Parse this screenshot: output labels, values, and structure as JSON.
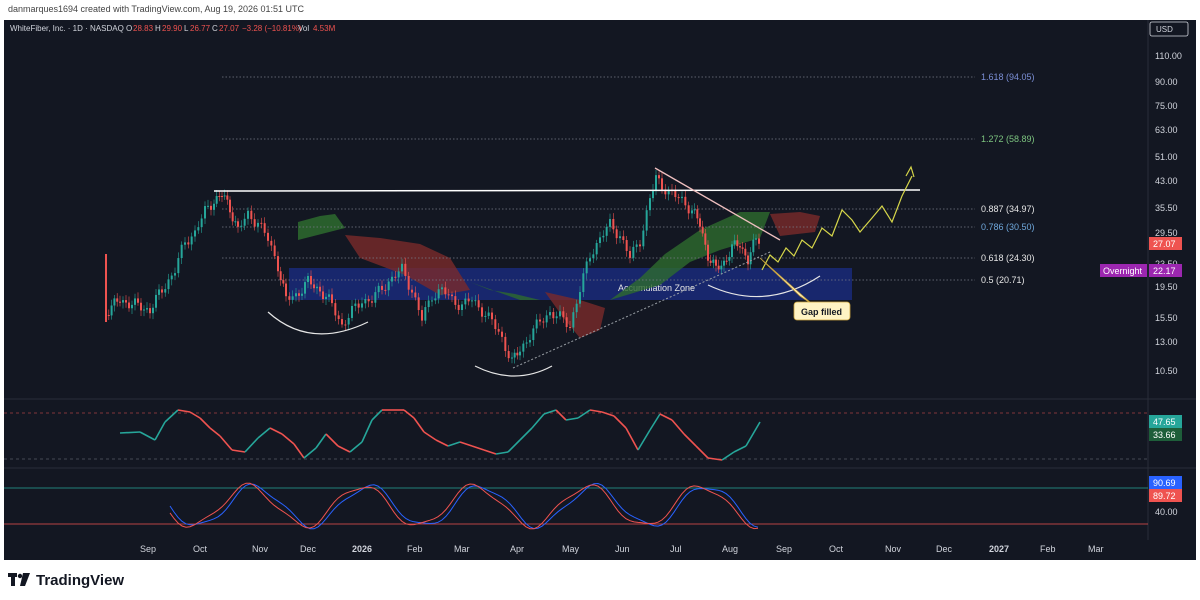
{
  "attribution": "danmarques1694 created with TradingView.com, Aug 19, 2026 01:51 UTC",
  "legend": {
    "symbol": "WhiteFiber, Inc. · 1D · NASDAQ",
    "o_label": "O",
    "o_value": "28.83",
    "h_label": "H",
    "h_value": "29.90",
    "l_label": "L",
    "l_value": "26.77",
    "c_label": "C",
    "c_value": "27.07",
    "change": "−3.28 (−10.81%)",
    "vol_label": "Vol",
    "vol_value": "4.53M"
  },
  "currency_button": "USD",
  "price_axis": {
    "ticks": [
      "110.00",
      "90.00",
      "75.00",
      "63.00",
      "51.00",
      "43.00",
      "35.50",
      "29.50",
      "23.50",
      "19.50",
      "15.50",
      "13.00",
      "10.50"
    ],
    "last_price": "27.07",
    "overnight_label": "Overnight",
    "overnight_price": "22.17"
  },
  "fib_levels": [
    {
      "label": "1.618 (94.05)",
      "color": "#7b8fd6"
    },
    {
      "label": "1.272 (58.89)",
      "color": "#7cc47f"
    },
    {
      "label": "0.887 (34.97)",
      "color": "#e6e6e6"
    },
    {
      "label": "0.786 (30.50)",
      "color": "#6fa8dc"
    },
    {
      "label": "0.618 (24.30)",
      "color": "#e6e6e6"
    },
    {
      "label": "0.5 (20.71)",
      "color": "#e6e6e6"
    }
  ],
  "annotations": {
    "accumulation_zone": "Accumulation Zone",
    "gap_filled": "Gap filled"
  },
  "rsi_panel": {
    "value_1": "47.65",
    "value_2": "33.66"
  },
  "stoch_panel": {
    "value_1": "90.69",
    "value_2": "89.72",
    "tick": "40.00"
  },
  "time_axis": [
    "Sep",
    "Oct",
    "Nov",
    "Dec",
    "2026",
    "Feb",
    "Mar",
    "Apr",
    "May",
    "Jun",
    "Jul",
    "Aug",
    "Sep",
    "Oct",
    "Nov",
    "Dec",
    "2027",
    "Feb",
    "Mar"
  ],
  "brand": "TradingView",
  "colors": {
    "up": "#26a69a",
    "down": "#ef5350",
    "bg": "#131722",
    "accent_yellow": "#d6d64a"
  }
}
